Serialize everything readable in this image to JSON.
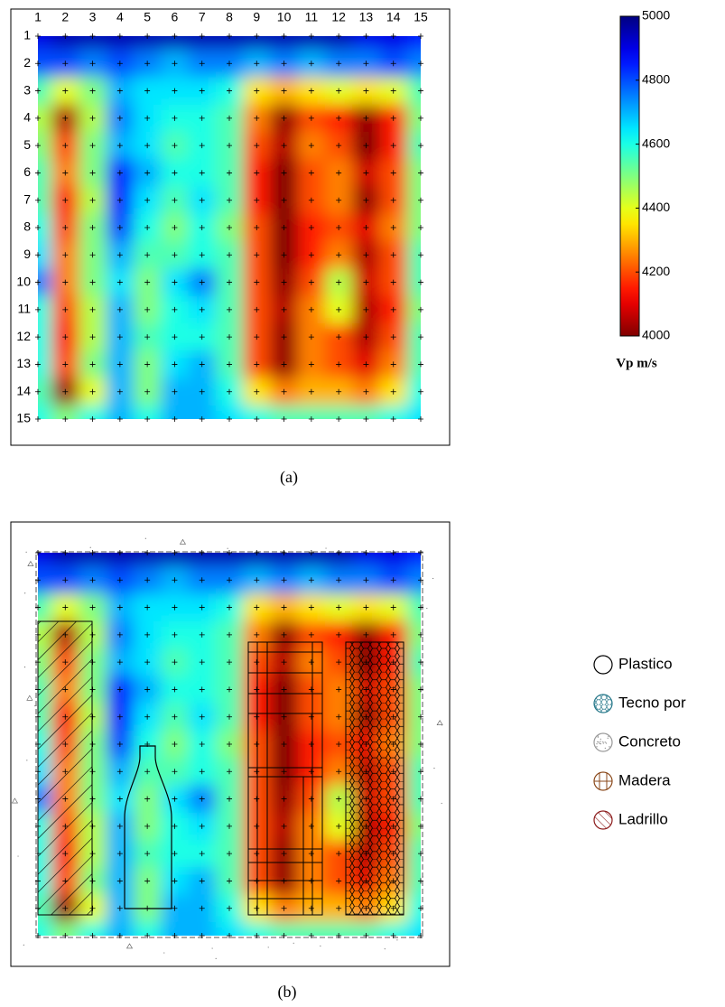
{
  "chart_data": [
    {
      "type": "heatmap",
      "caption": "(a)",
      "colormap": "jet",
      "xticks": [
        1,
        2,
        3,
        4,
        5,
        6,
        7,
        8,
        9,
        10,
        11,
        12,
        13,
        14,
        15
      ],
      "yticks": [
        1,
        2,
        3,
        4,
        5,
        6,
        7,
        8,
        9,
        10,
        11,
        12,
        13,
        14,
        15
      ],
      "values": [
        [
          4900,
          4950,
          4950,
          4950,
          4950,
          4950,
          4950,
          4950,
          4950,
          4950,
          4950,
          4950,
          4900,
          4900,
          4850
        ],
        [
          4800,
          4800,
          4750,
          4800,
          4750,
          4700,
          4750,
          4750,
          4700,
          4750,
          4700,
          4750,
          4750,
          4800,
          4750
        ],
        [
          4550,
          4400,
          4500,
          4700,
          4650,
          4650,
          4650,
          4600,
          4350,
          4300,
          4350,
          4400,
          4350,
          4400,
          4550
        ],
        [
          4450,
          4050,
          4450,
          4750,
          4650,
          4600,
          4600,
          4550,
          4250,
          4020,
          4200,
          4150,
          4020,
          4150,
          4500
        ],
        [
          4500,
          4200,
          4500,
          4700,
          4650,
          4550,
          4600,
          4550,
          4200,
          4050,
          4250,
          4200,
          4000,
          4150,
          4550
        ],
        [
          4550,
          4250,
          4500,
          4850,
          4700,
          4600,
          4600,
          4550,
          4150,
          4000,
          4200,
          4250,
          4080,
          4200,
          4500
        ],
        [
          4550,
          4150,
          4450,
          4850,
          4650,
          4550,
          4650,
          4550,
          4150,
          4000,
          4200,
          4250,
          4020,
          4200,
          4500
        ],
        [
          4600,
          4200,
          4500,
          4800,
          4600,
          4500,
          4600,
          4500,
          4200,
          4000,
          4150,
          4200,
          4100,
          4250,
          4500
        ],
        [
          4650,
          4250,
          4500,
          4700,
          4550,
          4550,
          4600,
          4550,
          4200,
          4000,
          4150,
          4250,
          4050,
          4200,
          4550
        ],
        [
          4750,
          4250,
          4500,
          4650,
          4500,
          4650,
          4750,
          4550,
          4200,
          4020,
          4200,
          4450,
          4080,
          4200,
          4550
        ],
        [
          4600,
          4200,
          4450,
          4700,
          4500,
          4600,
          4650,
          4550,
          4200,
          4050,
          4250,
          4400,
          4050,
          4150,
          4500
        ],
        [
          4600,
          4150,
          4450,
          4700,
          4550,
          4600,
          4600,
          4550,
          4200,
          4020,
          4250,
          4200,
          4050,
          4200,
          4550
        ],
        [
          4600,
          4200,
          4500,
          4700,
          4500,
          4650,
          4700,
          4550,
          4200,
          4020,
          4250,
          4200,
          4100,
          4250,
          4550
        ],
        [
          4550,
          4030,
          4400,
          4700,
          4500,
          4700,
          4700,
          4600,
          4350,
          4250,
          4300,
          4300,
          4250,
          4350,
          4600
        ],
        [
          4600,
          4500,
          4600,
          4700,
          4600,
          4700,
          4700,
          4650,
          4600,
          4550,
          4550,
          4550,
          4550,
          4600,
          4650
        ]
      ],
      "colorbar": {
        "lim": [
          4000,
          5000
        ],
        "ticks": [
          4000,
          4200,
          4400,
          4600,
          4800,
          5000
        ],
        "label": "Vp m/s"
      }
    },
    {
      "type": "heatmap_overlay",
      "caption": "(b)",
      "legend": [
        {
          "name": "Plastico",
          "color": "#ffffff"
        },
        {
          "name": "Tecno por",
          "color": "#2a7a8c"
        },
        {
          "name": "Concreto",
          "color": "#999999"
        },
        {
          "name": "Madera",
          "color": "#8b4a1c"
        },
        {
          "name": "Ladrillo",
          "color": "#8b1a1a"
        }
      ]
    }
  ]
}
